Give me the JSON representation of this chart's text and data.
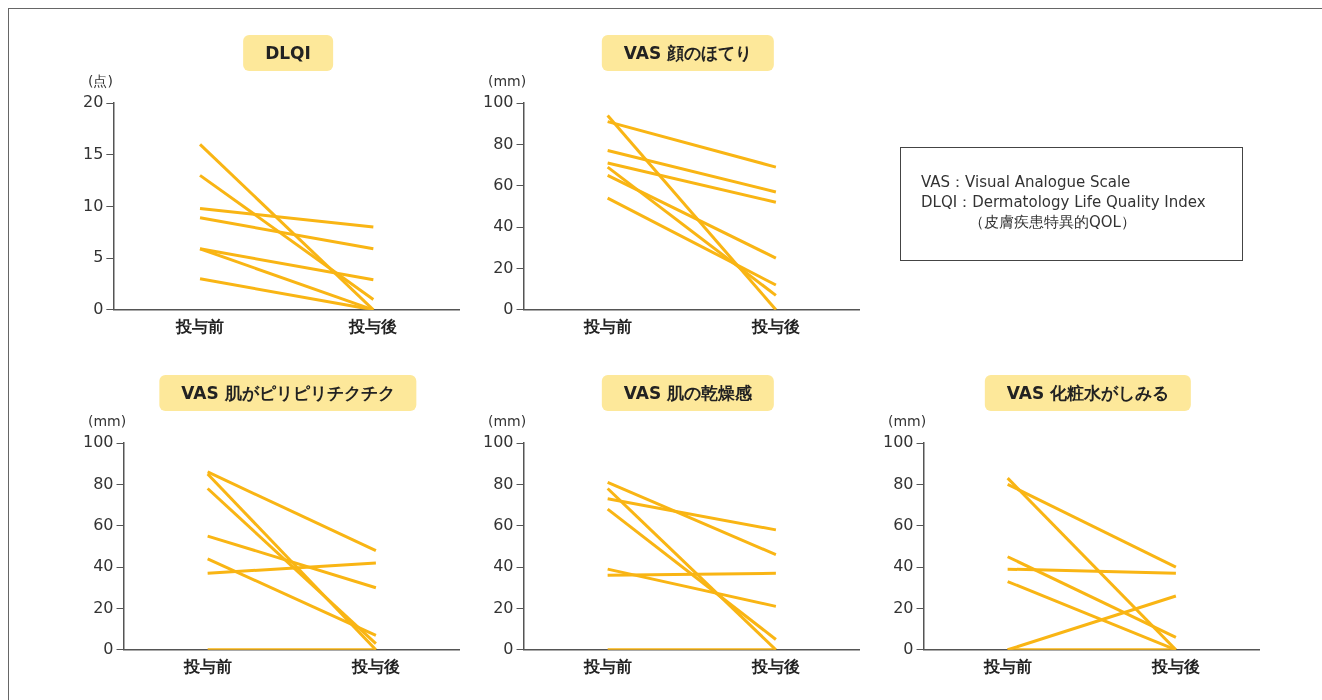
{
  "chart_data": [
    {
      "type": "line",
      "title": "DLQI",
      "ylabel": "(点)",
      "categories": [
        "投与前",
        "投与後"
      ],
      "ylim": [
        0,
        20
      ],
      "yticks": [
        0,
        5,
        10,
        15,
        20
      ],
      "series": [
        {
          "color": "#f9b514",
          "values": [
            16,
            0
          ]
        },
        {
          "color": "#f9b514",
          "values": [
            13,
            1
          ]
        },
        {
          "color": "#f9b514",
          "values": [
            9.8,
            8
          ]
        },
        {
          "color": "#f9b514",
          "values": [
            8.9,
            5.9
          ]
        },
        {
          "color": "#f9b514",
          "values": [
            5.9,
            2.9
          ]
        },
        {
          "color": "#f9b514",
          "values": [
            5.9,
            0
          ]
        },
        {
          "color": "#f9b514",
          "values": [
            3,
            0
          ]
        }
      ]
    },
    {
      "type": "line",
      "title": "VAS 顔のほてり",
      "ylabel": "(mm)",
      "categories": [
        "投与前",
        "投与後"
      ],
      "ylim": [
        0,
        100
      ],
      "yticks": [
        0,
        20,
        40,
        60,
        80,
        100
      ],
      "series": [
        {
          "color": "#f9b514",
          "values": [
            94,
            0
          ]
        },
        {
          "color": "#f9b514",
          "values": [
            91,
            69
          ]
        },
        {
          "color": "#f9b514",
          "values": [
            77,
            57
          ]
        },
        {
          "color": "#f9b514",
          "values": [
            71,
            52
          ]
        },
        {
          "color": "#f9b514",
          "values": [
            69,
            7
          ]
        },
        {
          "color": "#f9b514",
          "values": [
            65,
            25
          ]
        },
        {
          "color": "#f9b514",
          "values": [
            54,
            12
          ]
        }
      ]
    },
    {
      "type": "other",
      "annotations": [
        "VAS：Visual Analogue Scale",
        "DLQI：Dermatology Life Quality Index",
        "（皮膚疾患特異的QOL）"
      ]
    },
    {
      "type": "line",
      "title": "VAS 肌がピリピリチクチク",
      "ylabel": "(mm)",
      "categories": [
        "投与前",
        "投与後"
      ],
      "ylim": [
        0,
        100
      ],
      "yticks": [
        0,
        20,
        40,
        60,
        80,
        100
      ],
      "series": [
        {
          "color": "#f9b514",
          "values": [
            86,
            48
          ]
        },
        {
          "color": "#f9b514",
          "values": [
            85,
            0
          ]
        },
        {
          "color": "#f9b514",
          "values": [
            78,
            3
          ]
        },
        {
          "color": "#f9b514",
          "values": [
            55,
            30
          ]
        },
        {
          "color": "#f9b514",
          "values": [
            44,
            7
          ]
        },
        {
          "color": "#f9b514",
          "values": [
            37,
            42
          ]
        },
        {
          "color": "#f9b514",
          "values": [
            0,
            0
          ]
        }
      ]
    },
    {
      "type": "line",
      "title": "VAS 肌の乾燥感",
      "ylabel": "(mm)",
      "categories": [
        "投与前",
        "投与後"
      ],
      "ylim": [
        0,
        100
      ],
      "yticks": [
        0,
        20,
        40,
        60,
        80,
        100
      ],
      "series": [
        {
          "color": "#f9b514",
          "values": [
            81,
            46
          ]
        },
        {
          "color": "#f9b514",
          "values": [
            78,
            0
          ]
        },
        {
          "color": "#f9b514",
          "values": [
            73,
            58
          ]
        },
        {
          "color": "#f9b514",
          "values": [
            68,
            5
          ]
        },
        {
          "color": "#f9b514",
          "values": [
            39,
            21
          ]
        },
        {
          "color": "#f9b514",
          "values": [
            36,
            37
          ]
        },
        {
          "color": "#f9b514",
          "values": [
            0,
            0
          ]
        }
      ]
    },
    {
      "type": "line",
      "title": "VAS 化粧水がしみる",
      "ylabel": "(mm)",
      "categories": [
        "投与前",
        "投与後"
      ],
      "ylim": [
        0,
        100
      ],
      "yticks": [
        0,
        20,
        40,
        60,
        80,
        100
      ],
      "series": [
        {
          "color": "#f9b514",
          "values": [
            83,
            0
          ]
        },
        {
          "color": "#f9b514",
          "values": [
            80,
            40
          ]
        },
        {
          "color": "#f9b514",
          "values": [
            45,
            6
          ]
        },
        {
          "color": "#f9b514",
          "values": [
            39,
            37
          ]
        },
        {
          "color": "#f9b514",
          "values": [
            33,
            0
          ]
        },
        {
          "color": "#f9b514",
          "values": [
            0,
            26
          ]
        },
        {
          "color": "#f9b514",
          "values": [
            0,
            0
          ]
        }
      ]
    }
  ]
}
